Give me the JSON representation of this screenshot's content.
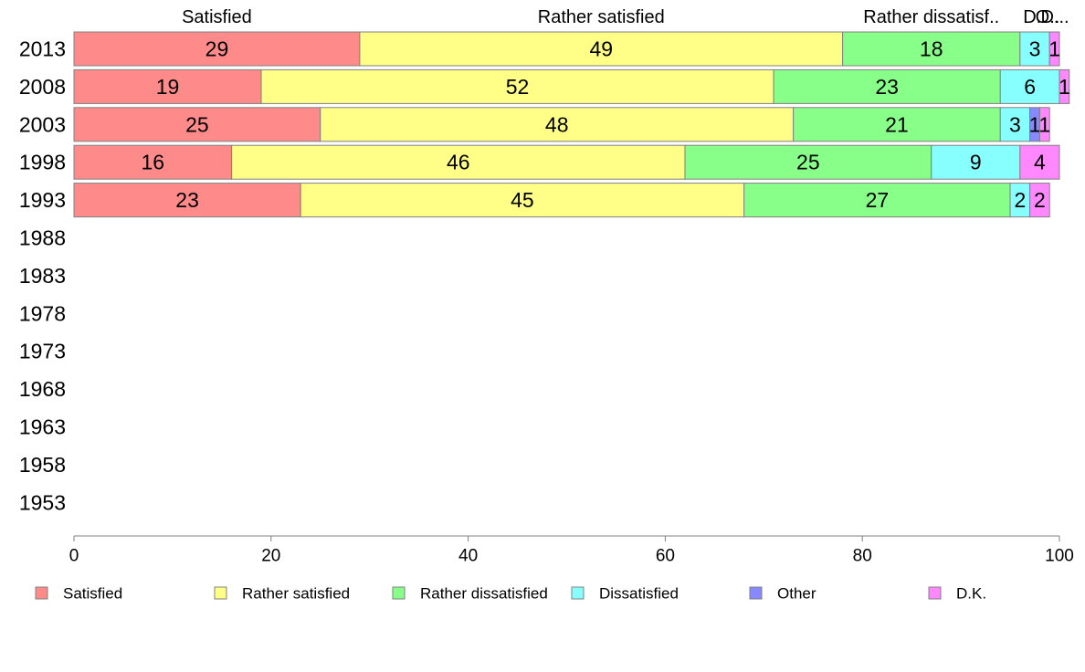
{
  "chart_data": {
    "type": "bar",
    "orientation": "horizontal",
    "stacked": true,
    "categories": [
      "2013",
      "2008",
      "2003",
      "1998",
      "1993",
      "1988",
      "1983",
      "1978",
      "1973",
      "1968",
      "1963",
      "1958",
      "1953"
    ],
    "column_headers": [
      "Satisfied",
      "Rather satisfied",
      "Rather dissatisf..",
      "D..",
      "O..",
      "D..."
    ],
    "series": [
      {
        "name": "Satisfied",
        "color": "#ff8a8a",
        "values": [
          29,
          19,
          25,
          16,
          23,
          null,
          null,
          null,
          null,
          null,
          null,
          null,
          null
        ],
        "labels": [
          "29",
          "19",
          "25",
          "16",
          "23"
        ]
      },
      {
        "name": "Rather satisfied",
        "color": "#ffff88",
        "values": [
          49,
          52,
          48,
          46,
          45,
          null,
          null,
          null,
          null,
          null,
          null,
          null,
          null
        ],
        "labels": [
          "49",
          "52",
          "48",
          "46",
          "45"
        ]
      },
      {
        "name": "Rather dissatisfied",
        "color": "#88ff88",
        "values": [
          18,
          23,
          21,
          25,
          27,
          null,
          null,
          null,
          null,
          null,
          null,
          null,
          null
        ],
        "labels": [
          "18",
          "23",
          "21",
          "25",
          "27"
        ]
      },
      {
        "name": "Dissatisfied",
        "color": "#88ffff",
        "values": [
          3,
          6,
          3,
          9,
          2,
          null,
          null,
          null,
          null,
          null,
          null,
          null,
          null
        ],
        "labels": [
          "3",
          "6",
          "3",
          "9",
          "2"
        ]
      },
      {
        "name": "Other",
        "color": "#8888ff",
        "values": [
          0,
          0,
          1,
          0,
          0,
          null,
          null,
          null,
          null,
          null,
          null,
          null,
          null
        ],
        "labels": [
          "",
          "",
          "1",
          "",
          ""
        ]
      },
      {
        "name": "D.K.",
        "color": "#ff88ff",
        "values": [
          1,
          1,
          1,
          4,
          2,
          null,
          null,
          null,
          null,
          null,
          null,
          null,
          null
        ],
        "labels": [
          "1",
          "1",
          "1",
          "4",
          "2"
        ]
      }
    ],
    "xlim": [
      0,
      100
    ],
    "x_ticks": [
      "0",
      "20",
      "40",
      "60",
      "80",
      "100"
    ],
    "grid": false,
    "legend_position": "bottom",
    "bar_outline_color": "#808080"
  }
}
